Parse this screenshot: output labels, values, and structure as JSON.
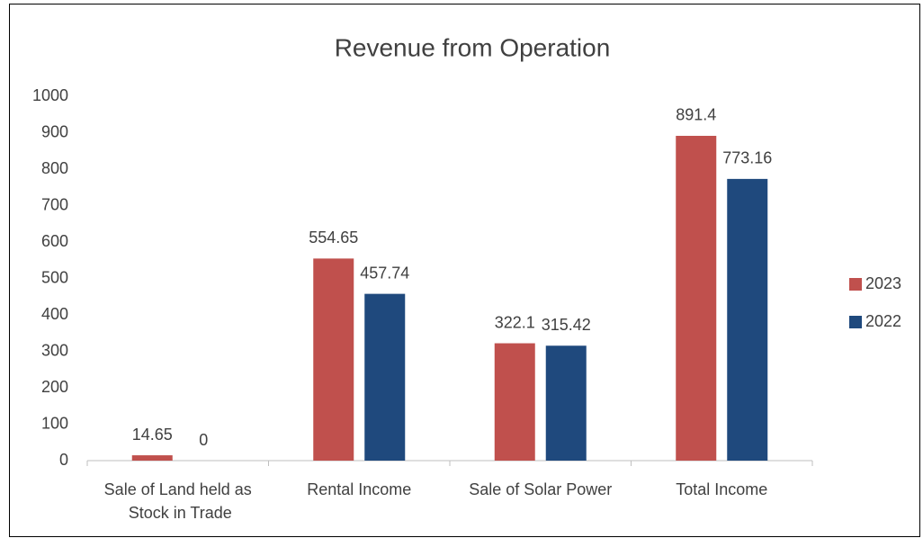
{
  "chart_data": {
    "type": "bar",
    "title": "Revenue from Operation",
    "categories": [
      "Sale of Land held as Stock in Trade",
      "Rental Income",
      "Sale of Solar Power",
      "Total Income"
    ],
    "series": [
      {
        "name": "2023",
        "color": "#c0504d",
        "values": [
          14.65,
          554.65,
          322.1,
          891.4
        ]
      },
      {
        "name": "2022",
        "color": "#1f497d",
        "values": [
          0,
          457.74,
          315.42,
          773.16
        ]
      }
    ],
    "ylim": [
      0,
      1000
    ],
    "yticks": [
      0,
      100,
      200,
      300,
      400,
      500,
      600,
      700,
      800,
      900,
      1000
    ],
    "grid": false,
    "legend": "right"
  }
}
